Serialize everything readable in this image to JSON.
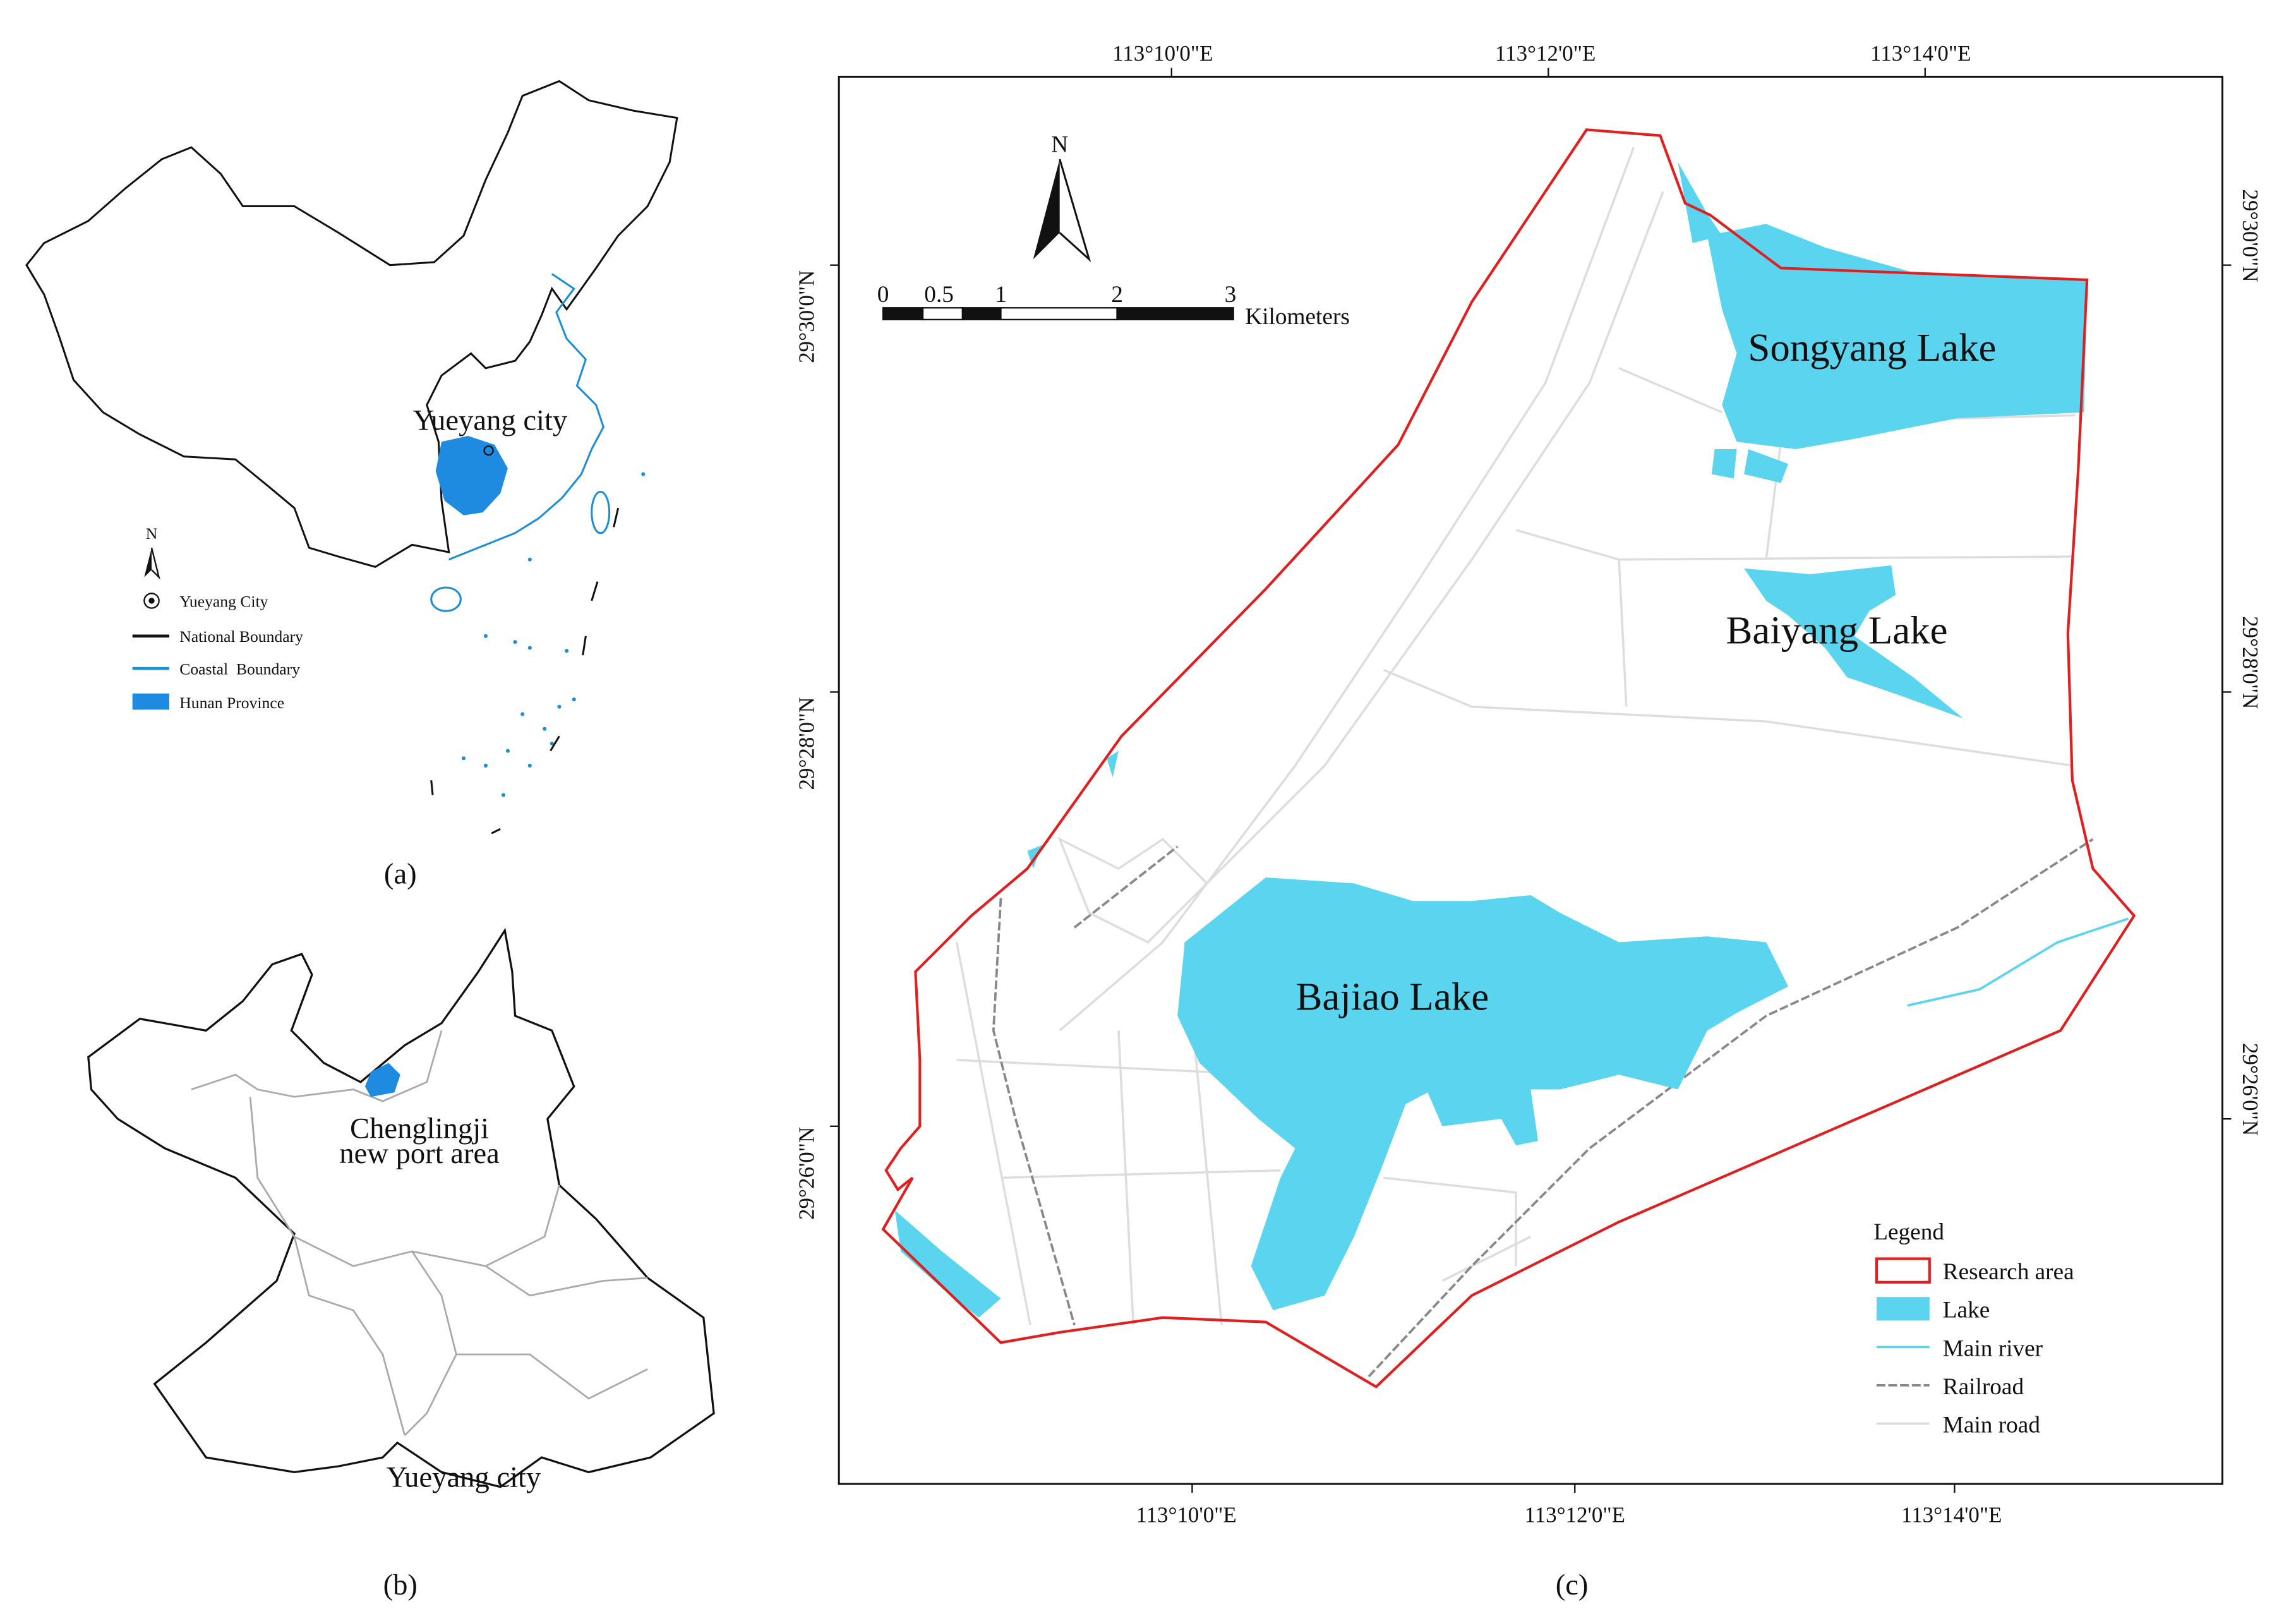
{
  "panel_a": {
    "label": "(a)",
    "city_label": "Yueyang city",
    "north": "N",
    "legend": [
      "Yueyang City",
      "National Boundary",
      "Coastal  Boundary",
      "Hunan Province"
    ]
  },
  "panel_b": {
    "label": "(b)",
    "area_label_lines": [
      "Chenglingji",
      "new port area"
    ],
    "city_label": "Yueyang city"
  },
  "panel_c": {
    "label": "(c)",
    "north": "N",
    "x_ticks": [
      "113°10'0\"E",
      "113°12'0\"E",
      "113°14'0\"E"
    ],
    "y_ticks": [
      "29°30'0\"N",
      "29°28'0\"N",
      "29°26'0\"N"
    ],
    "scale_bar": {
      "labels": [
        "0",
        "0.5",
        "1",
        "2",
        "3"
      ],
      "unit": "Kilometers"
    },
    "lakes": [
      "Songyang Lake",
      "Baiyang Lake",
      "Bajiao Lake"
    ],
    "legend": {
      "title": "Legend",
      "items": [
        "Research area",
        "Lake",
        "Main river",
        "Railroad",
        "Main road"
      ]
    }
  }
}
